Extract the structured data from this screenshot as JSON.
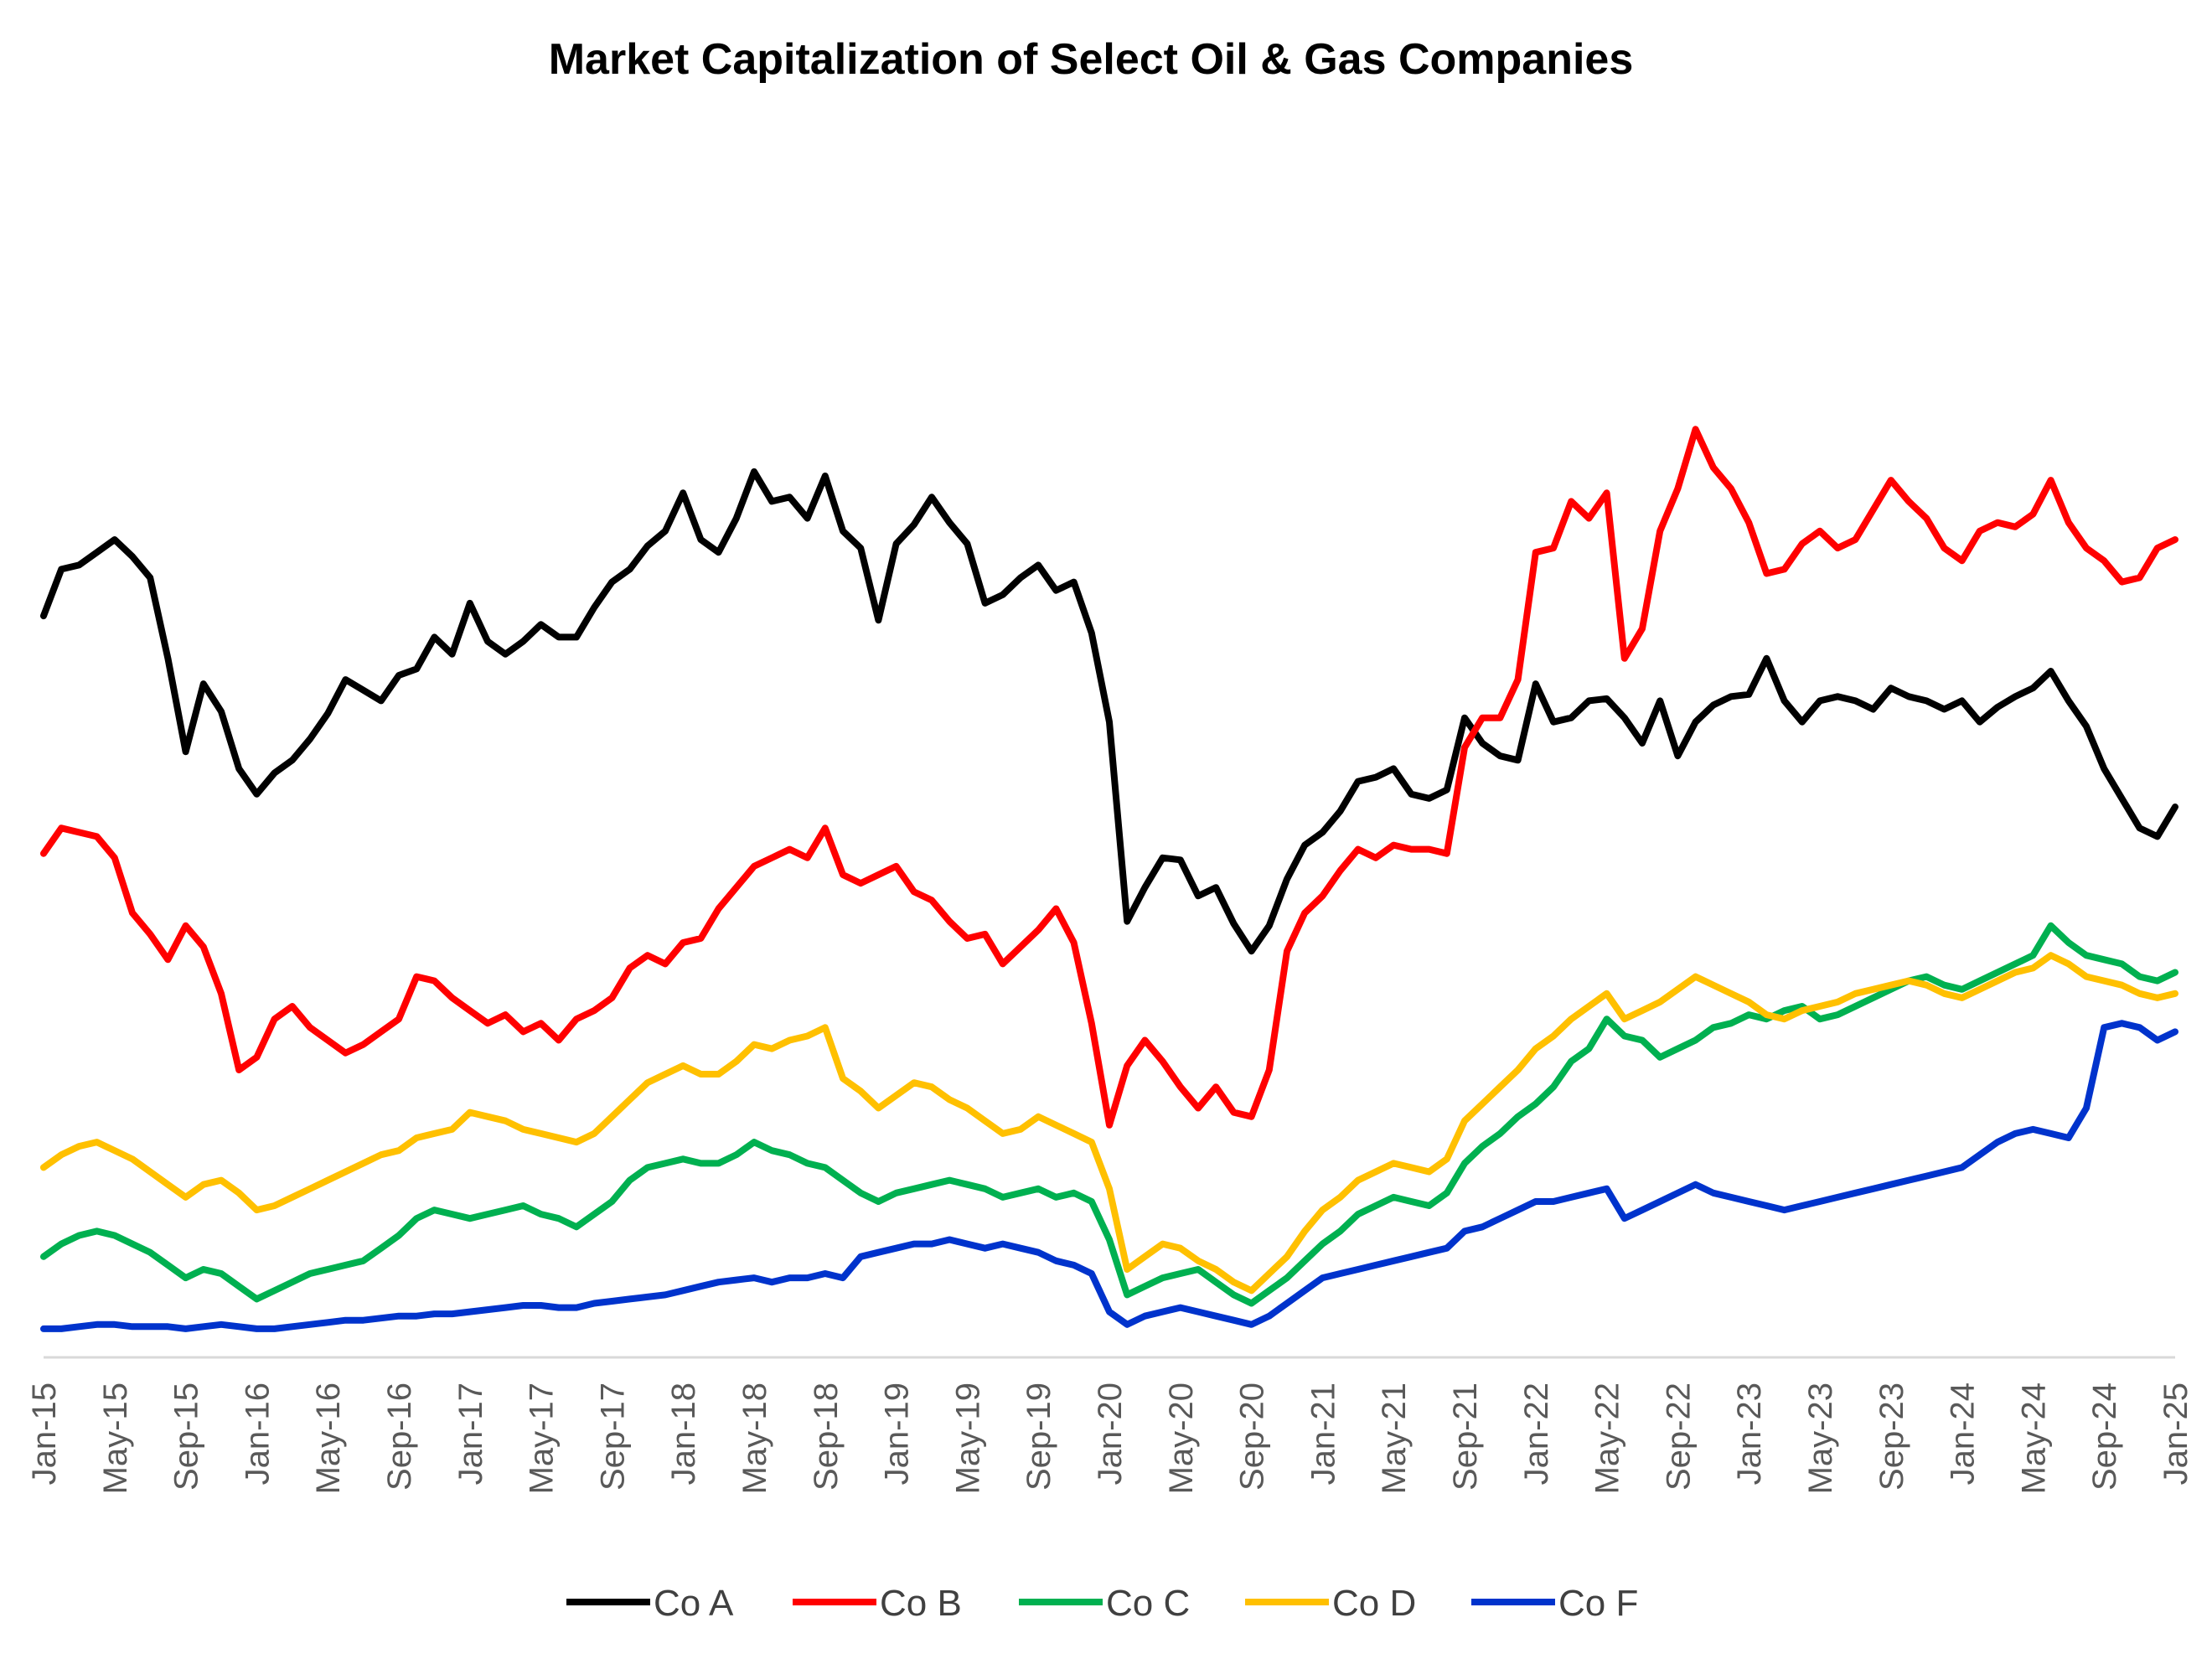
{
  "chart_data": {
    "type": "line",
    "title": "Market Capitalization of Select Oil & Gas Companies",
    "xlabel": "",
    "ylabel": "",
    "x_axis_type": "date",
    "x_range": [
      "2015-01",
      "2025-01"
    ],
    "x_tick_labels": [
      "Jan-15",
      "May-15",
      "Sep-15",
      "Jan-16",
      "May-16",
      "Sep-16",
      "Jan-17",
      "May-17",
      "Sep-17",
      "Jan-18",
      "May-18",
      "Sep-18",
      "Jan-19",
      "May-19",
      "Sep-19",
      "Jan-20",
      "May-20",
      "Sep-20",
      "Jan-21",
      "May-21",
      "Sep-21",
      "Jan-22",
      "May-22",
      "Sep-22",
      "Jan-23",
      "May-23",
      "Sep-23",
      "Jan-24",
      "May-24",
      "Sep-24",
      "Jan-25"
    ],
    "y_axis_visible": false,
    "y_axis_labels_printed": false,
    "y_values_note": "",
    "grid": false,
    "legend_position": "bottom",
    "x": [
      "2015-01",
      "2015-02",
      "2015-03",
      "2015-04",
      "2015-05",
      "2015-06",
      "2015-07",
      "2015-08",
      "2015-09",
      "2015-10",
      "2015-11",
      "2015-12",
      "2016-01",
      "2016-02",
      "2016-03",
      "2016-04",
      "2016-05",
      "2016-06",
      "2016-07",
      "2016-08",
      "2016-09",
      "2016-10",
      "2016-11",
      "2016-12",
      "2017-01",
      "2017-02",
      "2017-03",
      "2017-04",
      "2017-05",
      "2017-06",
      "2017-07",
      "2017-08",
      "2017-09",
      "2017-10",
      "2017-11",
      "2017-12",
      "2018-01",
      "2018-02",
      "2018-03",
      "2018-04",
      "2018-05",
      "2018-06",
      "2018-07",
      "2018-08",
      "2018-09",
      "2018-10",
      "2018-11",
      "2018-12",
      "2019-01",
      "2019-02",
      "2019-03",
      "2019-04",
      "2019-05",
      "2019-06",
      "2019-07",
      "2019-08",
      "2019-09",
      "2019-10",
      "2019-11",
      "2019-12",
      "2020-01",
      "2020-02",
      "2020-03",
      "2020-04",
      "2020-05",
      "2020-06",
      "2020-07",
      "2020-08",
      "2020-09",
      "2020-10",
      "2020-11",
      "2020-12",
      "2021-01",
      "2021-02",
      "2021-03",
      "2021-04",
      "2021-05",
      "2021-06",
      "2021-07",
      "2021-08",
      "2021-09",
      "2021-10",
      "2021-11",
      "2021-12",
      "2022-01",
      "2022-02",
      "2022-03",
      "2022-04",
      "2022-05",
      "2022-06",
      "2022-07",
      "2022-08",
      "2022-09",
      "2022-10",
      "2022-11",
      "2022-12",
      "2023-01",
      "2023-02",
      "2023-03",
      "2023-04",
      "2023-05",
      "2023-06",
      "2023-07",
      "2023-08",
      "2023-09",
      "2023-10",
      "2023-11",
      "2023-12",
      "2024-01",
      "2024-02",
      "2024-03",
      "2024-04",
      "2024-05",
      "2024-06",
      "2024-07",
      "2024-08",
      "2024-09",
      "2024-10",
      "2024-11",
      "2024-12",
      "2025-01"
    ],
    "ylim": [
      0,
      500
    ],
    "series": [
      {
        "name": "Co A",
        "color": "#000000",
        "values": [
          340,
          362,
          364,
          370,
          376,
          368,
          358,
          320,
          276,
          308,
          295,
          268,
          256,
          266,
          272,
          282,
          294,
          310,
          305,
          300,
          312,
          315,
          330,
          322,
          346,
          328,
          322,
          328,
          336,
          330,
          330,
          344,
          356,
          362,
          373,
          380,
          398,
          376,
          370,
          386,
          408,
          394,
          396,
          386,
          406,
          380,
          372,
          338,
          374,
          383,
          396,
          384,
          374,
          346,
          350,
          358,
          364,
          352,
          356,
          332,
          290,
          196,
          212,
          226,
          225,
          208,
          212,
          195,
          182,
          194,
          216,
          232,
          238,
          248,
          262,
          264,
          268,
          256,
          254,
          258,
          292,
          280,
          274,
          272,
          308,
          290,
          292,
          300,
          301,
          292,
          280,
          300,
          274,
          290,
          298,
          302,
          303,
          320,
          300,
          290,
          300,
          302,
          300,
          296,
          306,
          302,
          300,
          296,
          300,
          290,
          297,
          302,
          306,
          314,
          300,
          288,
          268,
          254,
          240,
          236,
          250
        ]
      },
      {
        "name": "Co B",
        "color": "#ff0000",
        "values": [
          228,
          240,
          238,
          236,
          226,
          200,
          190,
          178,
          194,
          184,
          162,
          126,
          132,
          150,
          156,
          146,
          140,
          134,
          138,
          144,
          150,
          170,
          168,
          160,
          154,
          148,
          152,
          144,
          148,
          140,
          150,
          154,
          160,
          174,
          180,
          176,
          186,
          188,
          202,
          212,
          222,
          226,
          230,
          226,
          240,
          218,
          214,
          218,
          222,
          210,
          206,
          196,
          188,
          190,
          176,
          184,
          192,
          202,
          186,
          148,
          100,
          128,
          140,
          130,
          118,
          108,
          118,
          106,
          104,
          126,
          182,
          200,
          208,
          220,
          230,
          226,
          232,
          230,
          230,
          228,
          278,
          292,
          292,
          310,
          370,
          372,
          394,
          386,
          398,
          320,
          334,
          380,
          400,
          428,
          410,
          400,
          384,
          360,
          362,
          374,
          380,
          372,
          376,
          390,
          404,
          394,
          386,
          372,
          366,
          380,
          384,
          382,
          388,
          404,
          384,
          372,
          366,
          356,
          358,
          372,
          376
        ]
      },
      {
        "name": "Co C",
        "color": "#00b050",
        "values": [
          38,
          44,
          48,
          50,
          48,
          44,
          40,
          34,
          28,
          32,
          30,
          24,
          18,
          22,
          26,
          30,
          32,
          34,
          36,
          42,
          48,
          56,
          60,
          58,
          56,
          58,
          60,
          62,
          58,
          56,
          52,
          58,
          64,
          74,
          80,
          82,
          84,
          82,
          82,
          86,
          92,
          88,
          86,
          82,
          80,
          74,
          68,
          64,
          68,
          70,
          72,
          74,
          72,
          70,
          66,
          68,
          70,
          66,
          68,
          64,
          46,
          20,
          24,
          28,
          30,
          32,
          26,
          20,
          16,
          22,
          28,
          36,
          44,
          50,
          58,
          62,
          66,
          64,
          62,
          68,
          82,
          90,
          96,
          104,
          110,
          118,
          130,
          136,
          150,
          142,
          140,
          132,
          136,
          140,
          146,
          148,
          152,
          150,
          154,
          156,
          150,
          152,
          156,
          160,
          164,
          168,
          170,
          166,
          164,
          168,
          172,
          176,
          180,
          194,
          186,
          180,
          178,
          176,
          170,
          168,
          172
        ]
      },
      {
        "name": "Co D",
        "color": "#ffc000",
        "values": [
          80,
          86,
          90,
          92,
          88,
          84,
          78,
          72,
          66,
          72,
          74,
          68,
          60,
          62,
          66,
          70,
          74,
          78,
          82,
          86,
          88,
          94,
          96,
          98,
          106,
          104,
          102,
          98,
          96,
          94,
          92,
          96,
          104,
          112,
          120,
          124,
          128,
          124,
          124,
          130,
          138,
          136,
          140,
          142,
          146,
          122,
          116,
          108,
          114,
          120,
          118,
          112,
          108,
          102,
          96,
          98,
          104,
          100,
          96,
          92,
          70,
          32,
          38,
          44,
          42,
          36,
          32,
          26,
          22,
          30,
          38,
          50,
          60,
          66,
          74,
          78,
          82,
          80,
          78,
          84,
          102,
          110,
          118,
          126,
          136,
          142,
          150,
          156,
          162,
          150,
          154,
          158,
          164,
          170,
          166,
          162,
          158,
          152,
          150,
          154,
          156,
          158,
          162,
          164,
          166,
          168,
          166,
          162,
          160,
          164,
          168,
          172,
          174,
          180,
          176,
          170,
          168,
          166,
          162,
          160,
          162
        ]
      },
      {
        "name": "Co F",
        "color": "#0033cc",
        "values": [
          4,
          4,
          5,
          6,
          6,
          5,
          5,
          5,
          4,
          5,
          6,
          5,
          4,
          4,
          5,
          6,
          7,
          8,
          8,
          9,
          10,
          10,
          11,
          11,
          12,
          13,
          14,
          15,
          15,
          14,
          14,
          16,
          17,
          18,
          19,
          20,
          22,
          24,
          26,
          27,
          28,
          26,
          28,
          28,
          30,
          28,
          38,
          40,
          42,
          44,
          44,
          46,
          44,
          42,
          44,
          42,
          40,
          36,
          34,
          30,
          12,
          6,
          10,
          12,
          14,
          12,
          10,
          8,
          6,
          10,
          16,
          22,
          28,
          30,
          32,
          34,
          36,
          38,
          40,
          42,
          50,
          52,
          56,
          60,
          64,
          64,
          66,
          68,
          70,
          56,
          60,
          64,
          68,
          72,
          68,
          66,
          64,
          62,
          60,
          62,
          64,
          66,
          68,
          70,
          72,
          74,
          76,
          78,
          80,
          86,
          92,
          96,
          98,
          96,
          94,
          108,
          146,
          148,
          146,
          140,
          144
        ]
      }
    ]
  }
}
